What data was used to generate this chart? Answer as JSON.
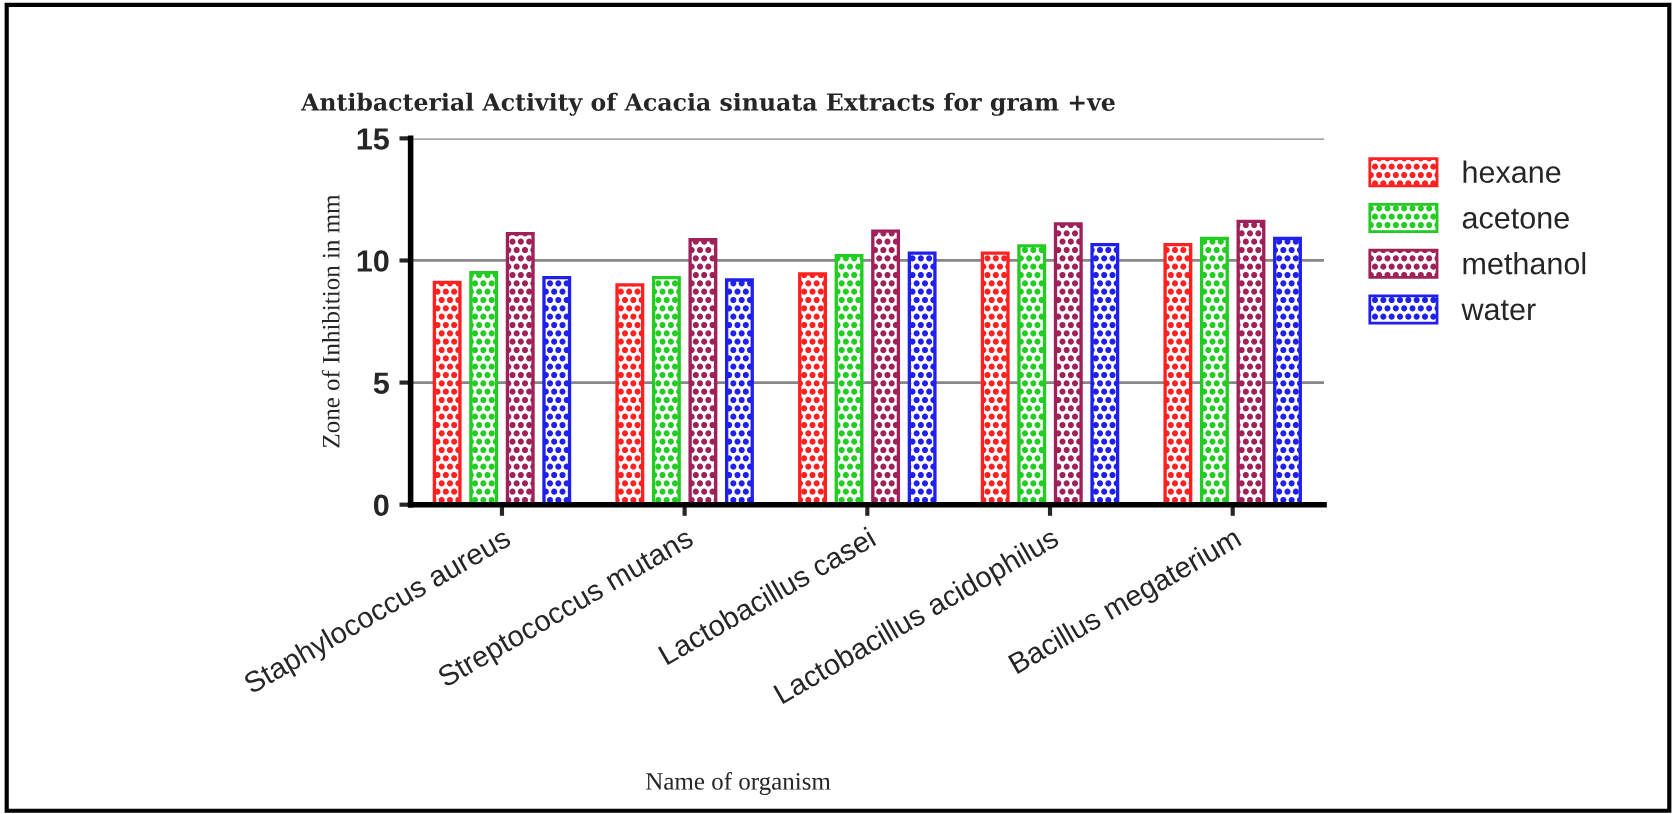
{
  "chart_data": {
    "type": "bar",
    "title": "Antibacterial Activity of Acacia sinuata Extracts for gram +ve",
    "xlabel": "Name of organism",
    "ylabel": "Zone of Inhibition in mm",
    "categories": [
      "Staphylococcus aureus",
      "Streptococcus mutans",
      "Lactobacillus casei",
      "Lactobacillus acidophilus",
      "Bacillus megaterium"
    ],
    "series": [
      {
        "name": "hexane",
        "color": "#ff2020",
        "values": [
          9.1,
          9.0,
          9.45,
          10.3,
          10.65
        ]
      },
      {
        "name": "acetone",
        "color": "#22cc22",
        "values": [
          9.5,
          9.3,
          10.2,
          10.6,
          10.9
        ]
      },
      {
        "name": "methanol",
        "color": "#a0205a",
        "values": [
          11.1,
          10.85,
          11.2,
          11.5,
          11.6
        ]
      },
      {
        "name": "water",
        "color": "#2020ee",
        "values": [
          9.3,
          9.2,
          10.3,
          10.65,
          10.9
        ]
      }
    ],
    "ylim": [
      0,
      15
    ],
    "yticks": [
      0,
      5,
      10,
      15
    ],
    "grid": "y",
    "legend": "top right"
  }
}
